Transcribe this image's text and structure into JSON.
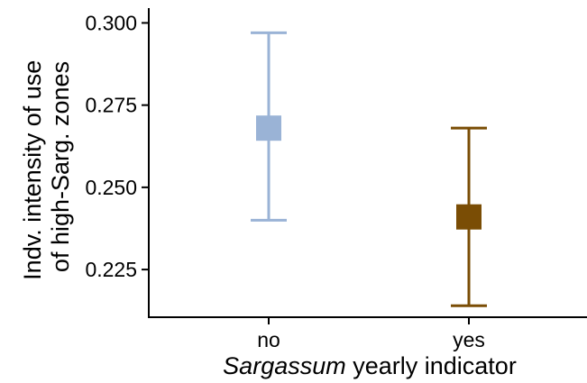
{
  "chart_data": {
    "type": "errorbar",
    "title": "",
    "xlabel_italic": "Sargassum",
    "xlabel_rest": " yearly indicator",
    "ylabel_line1": "Indv. intensity of use",
    "ylabel_line2": "of high-Sarg. zones",
    "categories": [
      "no",
      "yes"
    ],
    "points": [
      {
        "category": "no",
        "mean": 0.268,
        "lower": 0.24,
        "upper": 0.297,
        "color": "#9ab3d6"
      },
      {
        "category": "yes",
        "mean": 0.241,
        "lower": 0.214,
        "upper": 0.268,
        "color": "#7a4d05"
      }
    ],
    "yticks": [
      0.225,
      0.25,
      0.275,
      0.3
    ],
    "ytick_labels": [
      "0.225",
      "0.250",
      "0.275",
      "0.300"
    ],
    "ylim": [
      0.2105,
      0.3045
    ],
    "grid": false,
    "legend": "none"
  }
}
